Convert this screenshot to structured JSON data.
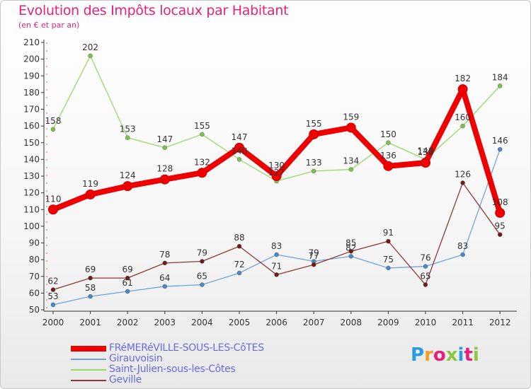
{
  "header": {
    "title": "Evolution des Impôts locaux par Habitant",
    "subtitle": "(en € et par an)"
  },
  "brand": {
    "text": "Proxiti"
  },
  "chart_data": {
    "type": "line",
    "title": "Evolution des Impôts locaux par Habitant",
    "subtitle": "(en € et par an)",
    "xlabel": "",
    "ylabel": "",
    "ylim": [
      50,
      210
    ],
    "y_ticks": [
      50,
      60,
      70,
      80,
      90,
      100,
      110,
      120,
      130,
      140,
      150,
      160,
      170,
      180,
      190,
      200,
      210
    ],
    "grid": false,
    "legend_position": "bottom-left",
    "categories": [
      "2000",
      "2001",
      "2002",
      "2003",
      "2004",
      "2005",
      "2006",
      "2007",
      "2008",
      "2009",
      "2010",
      "2011",
      "2012"
    ],
    "series": [
      {
        "name": "Saint-Julien-sous-les-Côtes",
        "color": "#9ad86a",
        "marker_color": "#7cc24a",
        "weight": "thin",
        "values": [
          158,
          202,
          153,
          147,
          155,
          140,
          127,
          133,
          134,
          150,
          140,
          160,
          184
        ],
        "labels": [
          "158",
          "202",
          "153",
          "147",
          "155",
          "140",
          "127",
          "133",
          "134",
          "150",
          "140",
          "160",
          "184"
        ]
      },
      {
        "name": "Girauvoisin",
        "color": "#6fa4d6",
        "marker_color": "#4a88c6",
        "weight": "thin",
        "values": [
          53,
          58,
          61,
          64,
          65,
          72,
          83,
          79,
          82,
          75,
          76,
          83,
          146
        ],
        "labels": [
          "53",
          "58",
          "61",
          "64",
          "65",
          "72",
          "83",
          "79",
          "82",
          "75",
          "76",
          "83",
          "146"
        ]
      },
      {
        "name": "Geville",
        "color": "#8a3838",
        "marker_color": "#6e1a1a",
        "weight": "thin",
        "values": [
          62,
          69,
          69,
          78,
          79,
          88,
          71,
          77,
          85,
          91,
          65,
          126,
          95
        ],
        "labels": [
          "62",
          "69",
          "69",
          "78",
          "79",
          "88",
          "71",
          "77",
          "85",
          "91",
          "65",
          "126",
          "95"
        ]
      },
      {
        "name": "FRéMERéVILLE-SOUS-LES-CôTES",
        "color": "#ee0000",
        "marker_color": "#ee0000",
        "weight": "thick",
        "values": [
          110,
          119,
          124,
          128,
          132,
          147,
          130,
          155,
          159,
          136,
          138,
          182,
          108
        ],
        "labels": [
          "110",
          "119",
          "124",
          "128",
          "132",
          "147",
          "130",
          "155",
          "159",
          "136",
          "138",
          "182",
          "108"
        ]
      }
    ]
  },
  "legend": {
    "items": [
      {
        "label": "FRéMERéVILLE-SOUS-LES-CôTES",
        "color": "#ee0000",
        "weight": "thick"
      },
      {
        "label": "Girauvoisin",
        "color": "#6fa4d6",
        "weight": "thin"
      },
      {
        "label": "Saint-Julien-sous-les-Côtes",
        "color": "#9ad86a",
        "weight": "thin"
      },
      {
        "label": "Geville",
        "color": "#8a3838",
        "weight": "thin"
      }
    ]
  }
}
